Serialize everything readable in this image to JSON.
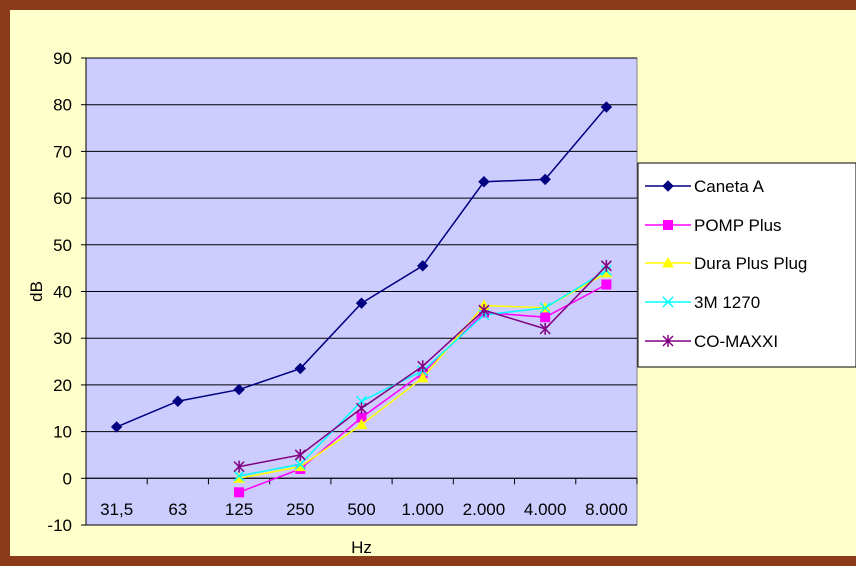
{
  "chart_data": {
    "type": "line",
    "title": "",
    "xlabel": "Hz",
    "ylabel": "dB",
    "ylim": [
      -10,
      90
    ],
    "yticks": [
      -10,
      0,
      10,
      20,
      30,
      40,
      50,
      60,
      70,
      80,
      90
    ],
    "grid": true,
    "legend_position": "right",
    "plot_background": "#CCCCFF",
    "categories": [
      "31,5",
      "63",
      "125",
      "250",
      "500",
      "1.000",
      "2.000",
      "4.000",
      "8.000"
    ],
    "series": [
      {
        "name": "Caneta A",
        "color": "#000080",
        "marker": "diamond",
        "values": [
          11,
          16.5,
          19,
          23.5,
          37.5,
          45.5,
          63.5,
          64,
          79.5
        ]
      },
      {
        "name": " POMP Plus",
        "color": "#FF00FF",
        "marker": "square",
        "values": [
          null,
          null,
          -3,
          2,
          13,
          22.5,
          35.5,
          34.5,
          41.5
        ]
      },
      {
        "name": "Dura Plus Plug",
        "color": "#FFFF00",
        "marker": "triangle",
        "values": [
          null,
          null,
          0,
          2.5,
          11.5,
          21.5,
          37,
          36.5,
          44
        ]
      },
      {
        "name": "3M 1270",
        "color": "#00FFFF",
        "marker": "x",
        "values": [
          null,
          null,
          0.5,
          3,
          16.5,
          23,
          35,
          36.5,
          44.5
        ]
      },
      {
        "name": "CO-MAXXI",
        "color": "#800080",
        "marker": "star",
        "values": [
          null,
          null,
          2.5,
          5,
          15,
          24,
          36,
          32,
          45.5
        ]
      }
    ]
  }
}
